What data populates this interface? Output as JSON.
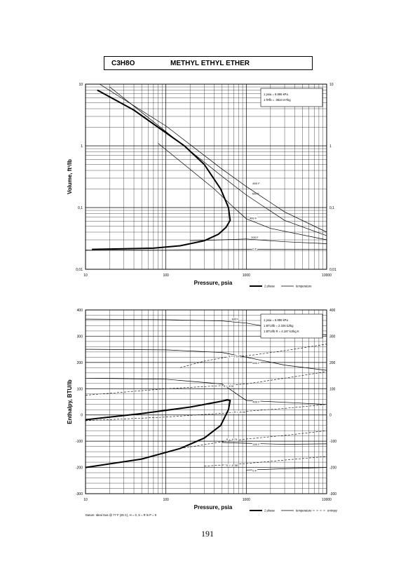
{
  "page": {
    "formula": "C3H8O",
    "compound": "METHYL ETHYL ETHER",
    "page_number": "191",
    "datum_note": "Datum: Ideal Gas @ 77 F (25 C), H = 0, S = R ln P = 0"
  },
  "chart_data": [
    {
      "type": "line",
      "xlabel": "Pressure,  psia",
      "ylabel": "Volume, ft^3/lb",
      "x_scale": "log",
      "y_scale": "log",
      "xlim": [
        10,
        10000
      ],
      "ylim": [
        0.01,
        10
      ],
      "x_ticks": [
        "10",
        "100",
        "1000",
        "10000"
      ],
      "y_ticks": [
        "0.01",
        "0.1",
        "1",
        "10"
      ],
      "grid": true,
      "conversions": [
        "1 psia = 6.895 kPa",
        "1 ft^3/lb = .0624 m^3/kg"
      ],
      "legend": {
        "placement": "bottom-right",
        "entries": [
          "2 phase",
          "temperature"
        ]
      },
      "dome": [
        {
          "p": 12,
          "v": 0.021
        },
        {
          "p": 30,
          "v": 0.0215
        },
        {
          "p": 70,
          "v": 0.022
        },
        {
          "p": 150,
          "v": 0.024
        },
        {
          "p": 300,
          "v": 0.029
        },
        {
          "p": 450,
          "v": 0.037
        },
        {
          "p": 560,
          "v": 0.048
        },
        {
          "p": 630,
          "v": 0.062
        },
        {
          "p": 600,
          "v": 0.1
        },
        {
          "p": 480,
          "v": 0.2
        },
        {
          "p": 300,
          "v": 0.5
        },
        {
          "p": 170,
          "v": 1.0
        },
        {
          "p": 80,
          "v": 2.0
        },
        {
          "p": 40,
          "v": 3.8
        },
        {
          "p": 14,
          "v": 8.0
        }
      ],
      "isotherms": [
        {
          "name": "0 F",
          "label_p": 1200,
          "label_v": 0.0215,
          "points": [
            {
              "p": 10,
              "v": 0.0205
            },
            {
              "p": 100,
              "v": 0.0207
            },
            {
              "p": 1000,
              "v": 0.021
            },
            {
              "p": 10000,
              "v": 0.0212
            }
          ]
        },
        {
          "name": "200 F",
          "label_p": 1150,
          "label_v": 0.0335,
          "points": [
            {
              "p": 200,
              "v": 0.029
            },
            {
              "p": 500,
              "v": 0.03
            },
            {
              "p": 1000,
              "v": 0.031
            },
            {
              "p": 3000,
              "v": 0.028
            },
            {
              "p": 10000,
              "v": 0.026
            }
          ]
        },
        {
          "name": "400 F",
          "label_p": 1100,
          "label_v": 0.068,
          "points": [
            {
              "p": 80,
              "v": 1.1
            },
            {
              "p": 400,
              "v": 0.2
            },
            {
              "p": 700,
              "v": 0.1
            },
            {
              "p": 1000,
              "v": 0.066
            },
            {
              "p": 2000,
              "v": 0.046
            },
            {
              "p": 10000,
              "v": 0.03
            }
          ]
        },
        {
          "name": "600 F",
          "label_p": 1180,
          "label_v": 0.17,
          "points": [
            {
              "p": 20,
              "v": 9.0
            },
            {
              "p": 100,
              "v": 1.7
            },
            {
              "p": 500,
              "v": 0.32
            },
            {
              "p": 1000,
              "v": 0.16
            },
            {
              "p": 3000,
              "v": 0.062
            },
            {
              "p": 10000,
              "v": 0.035
            }
          ]
        },
        {
          "name": "800 F",
          "label_p": 1200,
          "label_v": 0.25,
          "points": [
            {
              "p": 15,
              "v": 10
            },
            {
              "p": 100,
              "v": 2.1
            },
            {
              "p": 500,
              "v": 0.42
            },
            {
              "p": 1000,
              "v": 0.22
            },
            {
              "p": 3000,
              "v": 0.085
            },
            {
              "p": 10000,
              "v": 0.04
            }
          ]
        }
      ]
    },
    {
      "type": "line",
      "xlabel": "Pressure,  psia",
      "ylabel": "Enthalpy, BTU/lb",
      "x_scale": "log",
      "y_scale": "linear",
      "xlim": [
        10,
        10000
      ],
      "ylim": [
        -300,
        400
      ],
      "x_ticks": [
        "10",
        "100",
        "1000",
        "10000"
      ],
      "y_ticks": [
        "-300",
        "-200",
        "-100",
        "0",
        "100",
        "200",
        "300",
        "400"
      ],
      "grid": true,
      "conversions": [
        "1 psia = 6.895 kPa",
        "1 BTU/lb = 2.326 kJ/kg",
        "1 BTU/lb R = 4.187 kJ/kg K"
      ],
      "legend": {
        "placement": "bottom-right",
        "entries": [
          "2 phase",
          "temperature",
          "entropy"
        ]
      },
      "dome": [
        {
          "p": 10,
          "h": -200
        },
        {
          "p": 50,
          "h": -168
        },
        {
          "p": 150,
          "h": -128
        },
        {
          "p": 300,
          "h": -88
        },
        {
          "p": 480,
          "h": -40
        },
        {
          "p": 600,
          "h": 20
        },
        {
          "p": 630,
          "h": 55
        },
        {
          "p": 580,
          "h": 57
        },
        {
          "p": 450,
          "h": 50
        },
        {
          "p": 200,
          "h": 30
        },
        {
          "p": 50,
          "h": 5
        },
        {
          "p": 10,
          "h": -18
        }
      ],
      "isotherms": [
        {
          "name": "800 F",
          "label_p": 660,
          "label_h": 367,
          "points": [
            {
              "p": 10,
              "h": 365
            },
            {
              "p": 100,
              "h": 363
            },
            {
              "p": 500,
              "h": 358
            },
            {
              "p": 1000,
              "h": 350
            },
            {
              "p": 3000,
              "h": 325
            },
            {
              "p": 10000,
              "h": 305
            }
          ]
        },
        {
          "name": "600 F",
          "label_p": 1200,
          "label_h": 200,
          "points": [
            {
              "p": 10,
              "h": 250
            },
            {
              "p": 100,
              "h": 248
            },
            {
              "p": 500,
              "h": 238
            },
            {
              "p": 1000,
              "h": 220
            },
            {
              "p": 3000,
              "h": 190
            },
            {
              "p": 10000,
              "h": 170
            }
          ]
        },
        {
          "name": "400 F",
          "label_p": 1200,
          "label_h": 52,
          "points": [
            {
              "p": 10,
              "h": 140
            },
            {
              "p": 100,
              "h": 136
            },
            {
              "p": 500,
              "h": 118
            },
            {
              "p": 1000,
              "h": 55
            },
            {
              "p": 3000,
              "h": 48
            },
            {
              "p": 10000,
              "h": 40
            }
          ]
        },
        {
          "name": "200 F",
          "label_p": 1200,
          "label_h": -110,
          "points": [
            {
              "p": 500,
              "h": -105
            },
            {
              "p": 1000,
              "h": -108
            },
            {
              "p": 3000,
              "h": -112
            },
            {
              "p": 10000,
              "h": -110
            }
          ]
        },
        {
          "name": "0 F",
          "label_p": 1200,
          "label_h": -210,
          "points": [
            {
              "p": 1000,
              "h": -210
            },
            {
              "p": 3000,
              "h": -205
            },
            {
              "p": 10000,
              "h": -200
            }
          ]
        }
      ],
      "entropy_lines": [
        {
          "name": "S = 0.18",
          "label_p": 600,
          "label_h": 225,
          "points": [
            {
              "p": 150,
              "h": 180
            },
            {
              "p": 300,
              "h": 205
            },
            {
              "p": 600,
              "h": 222
            },
            {
              "p": 1000,
              "h": 225
            },
            {
              "p": 3000,
              "h": 245
            },
            {
              "p": 10000,
              "h": 270
            }
          ]
        },
        {
          "name": "S = 0.01",
          "label_p": 520,
          "label_h": 112,
          "points": [
            {
              "p": 10,
              "h": 75
            },
            {
              "p": 100,
              "h": 100
            },
            {
              "p": 400,
              "h": 110
            },
            {
              "p": 1000,
              "h": 118
            },
            {
              "p": 3000,
              "h": 140
            },
            {
              "p": 10000,
              "h": 165
            }
          ]
        },
        {
          "name": "S = -0.04",
          "label_p": 700,
          "label_h": 12,
          "points": [
            {
              "p": 10,
              "h": -22
            },
            {
              "p": 100,
              "h": -8
            },
            {
              "p": 600,
              "h": 8
            },
            {
              "p": 1000,
              "h": 14
            },
            {
              "p": 3000,
              "h": 25
            },
            {
              "p": 10000,
              "h": 40
            }
          ]
        },
        {
          "name": "S = -0.21",
          "label_p": 560,
          "label_h": -92,
          "points": [
            {
              "p": 150,
              "h": -128
            },
            {
              "p": 500,
              "h": -102
            },
            {
              "p": 1000,
              "h": -92
            },
            {
              "p": 3000,
              "h": -78
            },
            {
              "p": 10000,
              "h": -60
            }
          ]
        },
        {
          "name": "S = -0.38",
          "label_p": 560,
          "label_h": -190,
          "points": [
            {
              "p": 300,
              "h": -195
            },
            {
              "p": 1000,
              "h": -185
            },
            {
              "p": 3000,
              "h": -172
            },
            {
              "p": 10000,
              "h": -158
            }
          ]
        }
      ]
    }
  ]
}
